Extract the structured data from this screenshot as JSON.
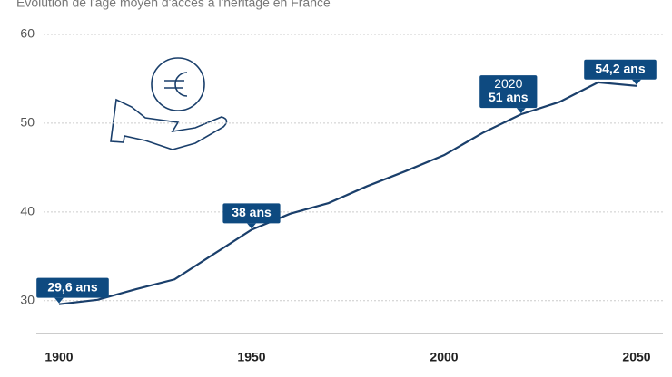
{
  "chart_data": {
    "type": "line",
    "title": "Évolution de l'âge moyen d'accès à l'héritage en France",
    "x": [
      1900,
      1910,
      1920,
      1930,
      1940,
      1950,
      1960,
      1970,
      1980,
      1990,
      2000,
      2010,
      2020,
      2030,
      2040,
      2050
    ],
    "series": [
      {
        "color": "#1a3f6b",
        "values": [
          29.6,
          30.1,
          31.3,
          32.4,
          35.2,
          38,
          39.8,
          41.0,
          42.9,
          44.6,
          46.4,
          48.9,
          51,
          52.4,
          54.6,
          54.2
        ],
        "value_labels": [
          "29,6 ans",
          null,
          null,
          null,
          null,
          "38 ans",
          null,
          null,
          null,
          null,
          null,
          null,
          "51 ans",
          null,
          null,
          "54,2 ans"
        ]
      }
    ],
    "xlim": [
      1900,
      2050
    ],
    "xticks": [
      1900,
      1950,
      2000,
      2050
    ],
    "ylim": [
      26.3,
      60
    ],
    "yticks": [
      30,
      40,
      50,
      60
    ],
    "grid": true
  }
}
